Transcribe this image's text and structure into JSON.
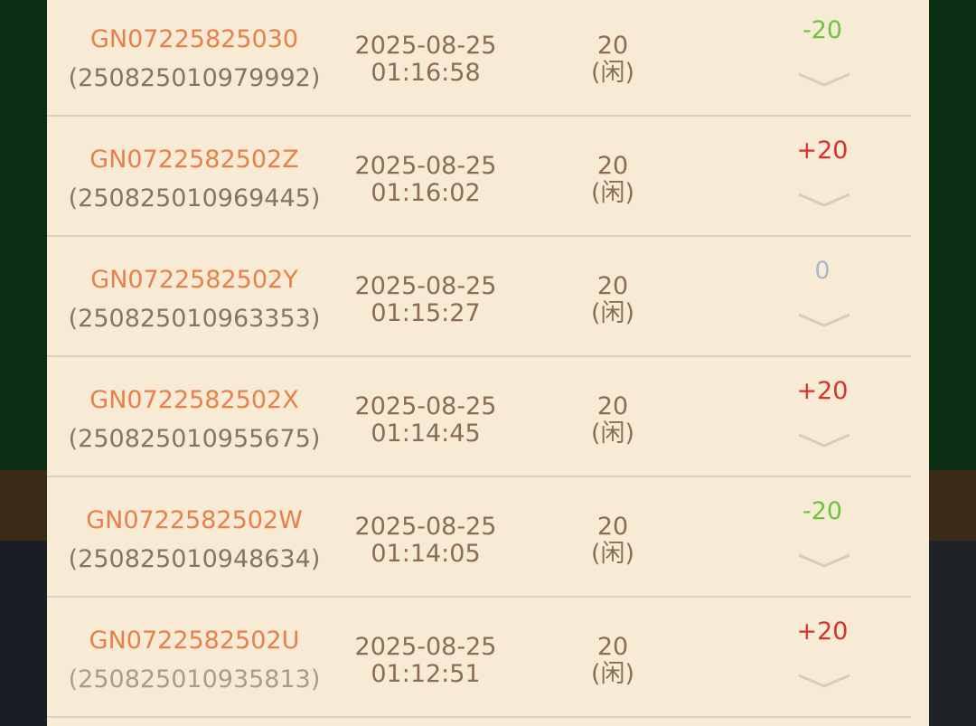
{
  "records": [
    {
      "game_id": "GN07225825030",
      "order_id": "(250825010979992)",
      "date": "2025-08-25",
      "time": "01:16:58",
      "amount": "20",
      "side": "(闲)",
      "result": "-20"
    },
    {
      "game_id": "GN0722582502Z",
      "order_id": "(250825010969445)",
      "date": "2025-08-25",
      "time": "01:16:02",
      "amount": "20",
      "side": "(闲)",
      "result": "+20"
    },
    {
      "game_id": "GN0722582502Y",
      "order_id": "(250825010963353)",
      "date": "2025-08-25",
      "time": "01:15:27",
      "amount": "20",
      "side": "(闲)",
      "result": "0"
    },
    {
      "game_id": "GN0722582502X",
      "order_id": "(250825010955675)",
      "date": "2025-08-25",
      "time": "01:14:45",
      "amount": "20",
      "side": "(闲)",
      "result": "+20"
    },
    {
      "game_id": "GN0722582502W",
      "order_id": "(250825010948634)",
      "date": "2025-08-25",
      "time": "01:14:05",
      "amount": "20",
      "side": "(闲)",
      "result": "-20"
    },
    {
      "game_id": "GN0722582502U",
      "order_id": "(250825010935813)",
      "date": "2025-08-25",
      "time": "01:12:51",
      "amount": "20",
      "side": "(闲)",
      "result": "+20"
    }
  ]
}
